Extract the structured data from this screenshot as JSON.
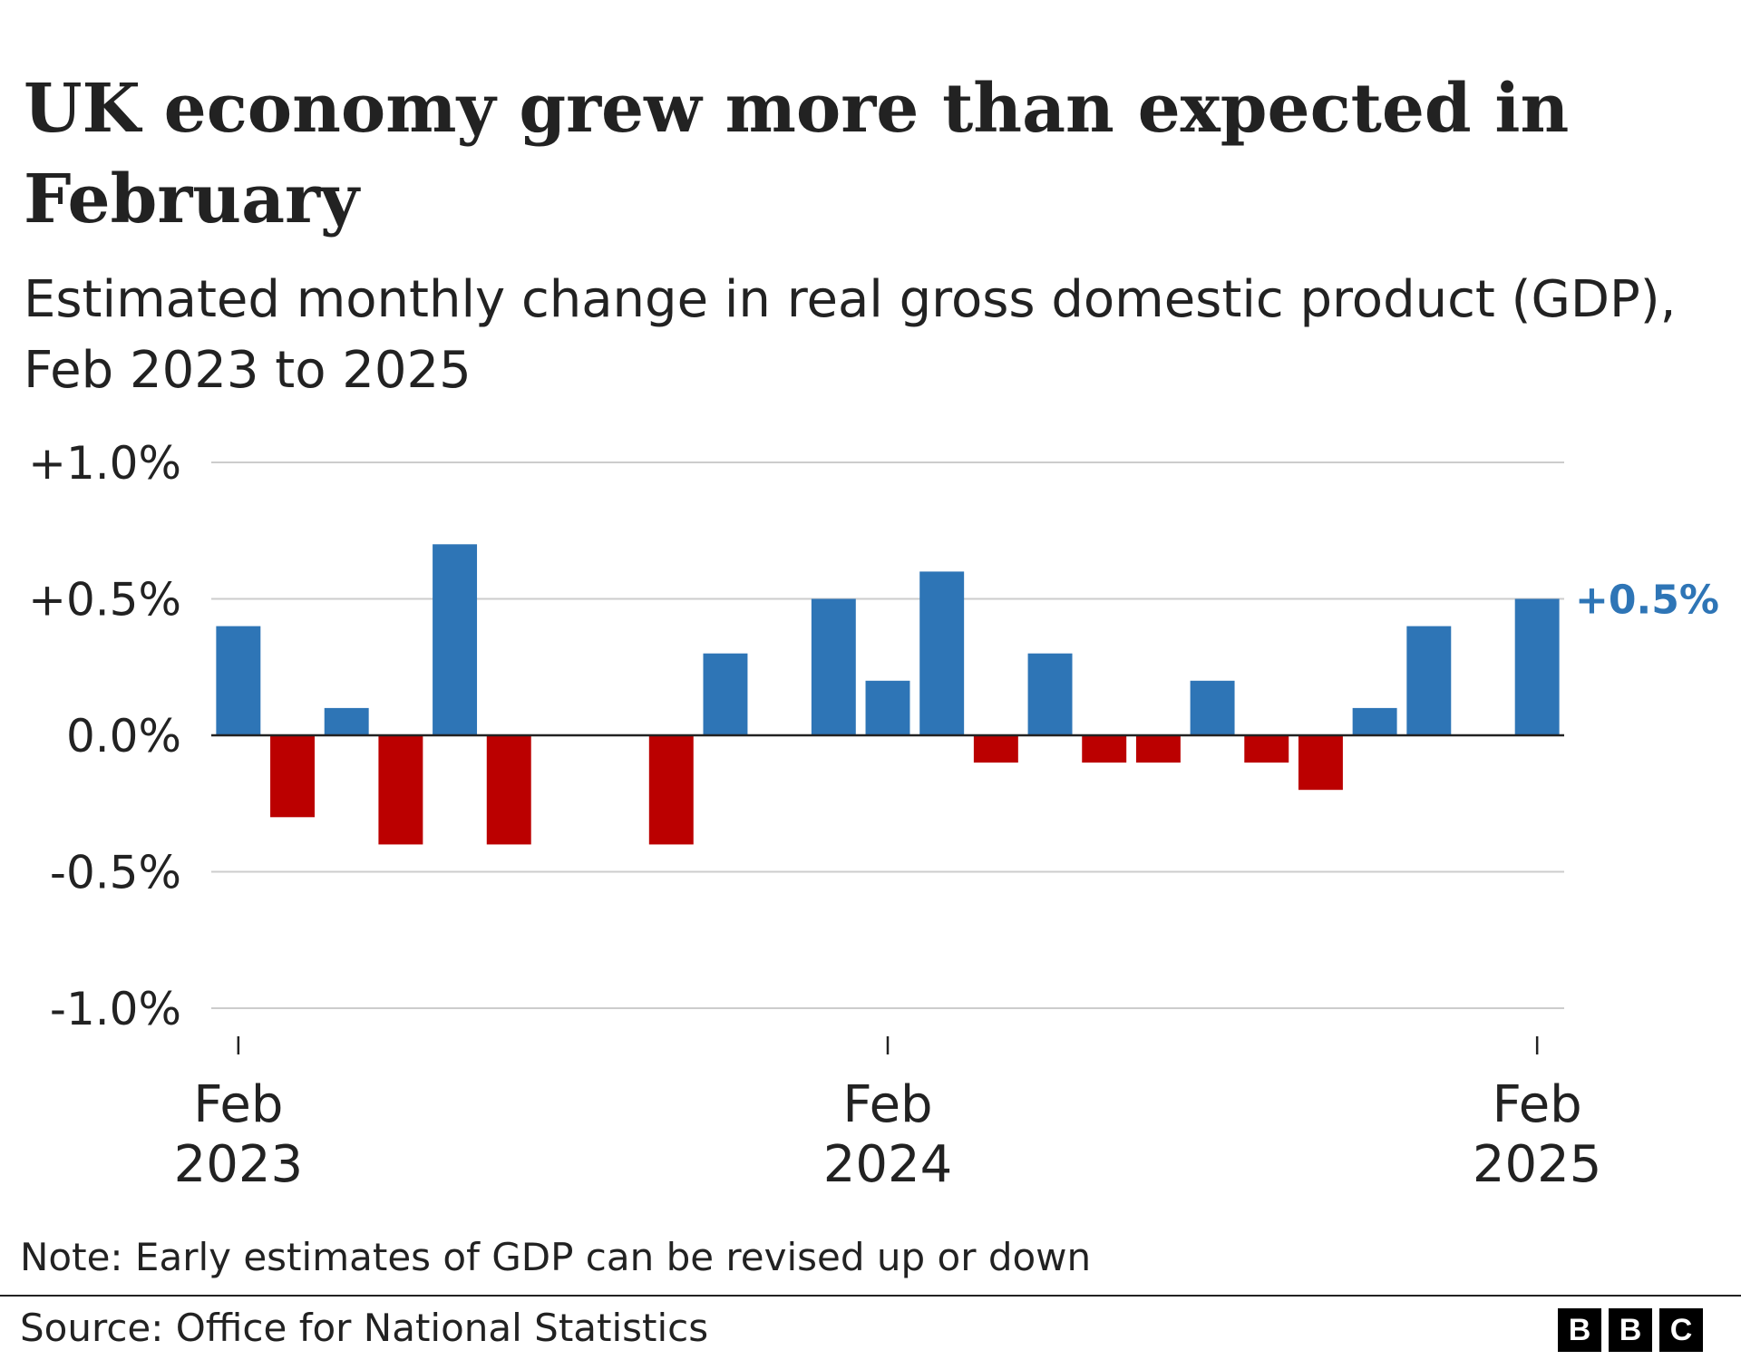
{
  "header": {
    "title": "UK economy grew more than expected in February",
    "subtitle": "Estimated monthly change in real gross domestic product (GDP), Feb 2023 to 2025"
  },
  "chart_data": {
    "type": "bar",
    "title": "UK economy grew more than expected in February",
    "subtitle": "Estimated monthly change in real gross domestic product (GDP), Feb 2023 to 2025",
    "xlabel": "",
    "ylabel": "",
    "ylim": [
      -1.0,
      1.0
    ],
    "grid": true,
    "y_ticks": [
      {
        "value": 1.0,
        "label": "+1.0%"
      },
      {
        "value": 0.5,
        "label": "+0.5%"
      },
      {
        "value": 0.0,
        "label": "0.0%"
      },
      {
        "value": -0.5,
        "label": "-0.5%"
      },
      {
        "value": -1.0,
        "label": "-1.0%"
      }
    ],
    "x_ticks": [
      {
        "index": 0,
        "line1": "Feb",
        "line2": "2023"
      },
      {
        "index": 12,
        "line1": "Feb",
        "line2": "2024"
      },
      {
        "index": 24,
        "line1": "Feb",
        "line2": "2025"
      }
    ],
    "categories": [
      "Feb 2023",
      "Mar 2023",
      "Apr 2023",
      "May 2023",
      "Jun 2023",
      "Jul 2023",
      "Aug 2023",
      "Sep 2023",
      "Oct 2023",
      "Nov 2023",
      "Dec 2023",
      "Jan 2024",
      "Feb 2024",
      "Mar 2024",
      "Apr 2024",
      "May 2024",
      "Jun 2024",
      "Jul 2024",
      "Aug 2024",
      "Sep 2024",
      "Oct 2024",
      "Nov 2024",
      "Dec 2024",
      "Jan 2025",
      "Feb 2025"
    ],
    "values": [
      0.4,
      -0.3,
      0.1,
      -0.4,
      0.7,
      -0.4,
      0.0,
      0.0,
      -0.4,
      0.3,
      0.0,
      0.5,
      0.2,
      0.6,
      -0.1,
      0.3,
      -0.1,
      -0.1,
      0.2,
      -0.1,
      -0.2,
      0.1,
      0.4,
      0.0,
      0.5
    ],
    "positive_color": "#2e75b6",
    "negative_color": "#bb0000",
    "annotation": {
      "index": 24,
      "label": "+0.5%"
    }
  },
  "footer": {
    "note": "Note: Early estimates of GDP can be revised up or down",
    "source": "Source: Office for National Statistics",
    "logo": [
      "B",
      "B",
      "C"
    ]
  }
}
